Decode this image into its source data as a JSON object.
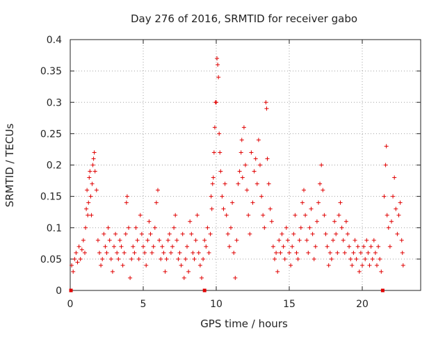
{
  "chart_data": {
    "type": "scatter",
    "title": "Day 276 of 2016, SRMTID for receiver gabo",
    "xlabel": "GPS time / hours",
    "ylabel": "SRMTID / TECUs",
    "xlim": [
      0,
      24
    ],
    "ylim": [
      0,
      0.4
    ],
    "x_ticks": [
      0,
      5,
      10,
      15,
      20
    ],
    "x_tick_labels": [
      "0",
      "5",
      "10",
      "15",
      "20"
    ],
    "y_ticks": [
      0,
      0.05,
      0.1,
      0.15,
      0.2,
      0.25,
      0.3,
      0.35,
      0.4
    ],
    "y_tick_labels": [
      "0",
      "0.05",
      "0.1",
      "0.15",
      "0.2",
      "0.25",
      "0.3",
      "0.35",
      "0.4"
    ],
    "grid": true,
    "marker": "+",
    "color": "#e00000",
    "series": [
      {
        "name": "SRMTID",
        "points": [
          [
            0.1,
            0.04
          ],
          [
            0.2,
            0.03
          ],
          [
            0.3,
            0.05
          ],
          [
            0.4,
            0.06
          ],
          [
            0.5,
            0.045
          ],
          [
            0.6,
            0.07
          ],
          [
            0.7,
            0.05
          ],
          [
            0.8,
            0.065
          ],
          [
            0.9,
            0.08
          ],
          [
            1.0,
            0.06
          ],
          [
            1.05,
            0.1
          ],
          [
            1.1,
            0.13
          ],
          [
            1.15,
            0.16
          ],
          [
            1.2,
            0.12
          ],
          [
            1.25,
            0.14
          ],
          [
            1.3,
            0.18
          ],
          [
            1.35,
            0.19
          ],
          [
            1.4,
            0.15
          ],
          [
            1.45,
            0.12
          ],
          [
            1.5,
            0.17
          ],
          [
            1.55,
            0.2
          ],
          [
            1.6,
            0.21
          ],
          [
            1.65,
            0.22
          ],
          [
            1.7,
            0.19
          ],
          [
            1.8,
            0.16
          ],
          [
            1.9,
            0.08
          ],
          [
            2.0,
            0.06
          ],
          [
            2.1,
            0.04
          ],
          [
            2.2,
            0.05
          ],
          [
            2.3,
            0.09
          ],
          [
            2.4,
            0.07
          ],
          [
            2.5,
            0.06
          ],
          [
            2.6,
            0.1
          ],
          [
            2.7,
            0.08
          ],
          [
            2.8,
            0.05
          ],
          [
            2.9,
            0.03
          ],
          [
            3.0,
            0.07
          ],
          [
            3.1,
            0.09
          ],
          [
            3.2,
            0.06
          ],
          [
            3.3,
            0.05
          ],
          [
            3.4,
            0.08
          ],
          [
            3.5,
            0.07
          ],
          [
            3.6,
            0.04
          ],
          [
            3.7,
            0.06
          ],
          [
            3.8,
            0.09
          ],
          [
            3.85,
            0.14
          ],
          [
            3.9,
            0.15
          ],
          [
            4.0,
            0.1
          ],
          [
            4.1,
            0.02
          ],
          [
            4.2,
            0.05
          ],
          [
            4.3,
            0.07
          ],
          [
            4.4,
            0.06
          ],
          [
            4.5,
            0.1
          ],
          [
            4.6,
            0.08
          ],
          [
            4.7,
            0.05
          ],
          [
            4.8,
            0.12
          ],
          [
            4.9,
            0.09
          ],
          [
            5.0,
            0.07
          ],
          [
            5.1,
            0.06
          ],
          [
            5.2,
            0.04
          ],
          [
            5.3,
            0.08
          ],
          [
            5.4,
            0.11
          ],
          [
            5.5,
            0.09
          ],
          [
            5.6,
            0.06
          ],
          [
            5.7,
            0.07
          ],
          [
            5.8,
            0.1
          ],
          [
            5.9,
            0.14
          ],
          [
            6.0,
            0.16
          ],
          [
            6.1,
            0.08
          ],
          [
            6.2,
            0.05
          ],
          [
            6.3,
            0.07
          ],
          [
            6.4,
            0.06
          ],
          [
            6.5,
            0.03
          ],
          [
            6.6,
            0.05
          ],
          [
            6.7,
            0.08
          ],
          [
            6.8,
            0.09
          ],
          [
            6.9,
            0.06
          ],
          [
            7.0,
            0.07
          ],
          [
            7.1,
            0.1
          ],
          [
            7.2,
            0.12
          ],
          [
            7.3,
            0.08
          ],
          [
            7.4,
            0.05
          ],
          [
            7.5,
            0.06
          ],
          [
            7.6,
            0.04
          ],
          [
            7.7,
            0.09
          ],
          [
            7.8,
            0.02
          ],
          [
            7.9,
            0.05
          ],
          [
            8.0,
            0.07
          ],
          [
            8.1,
            0.03
          ],
          [
            8.2,
            0.11
          ],
          [
            8.3,
            0.09
          ],
          [
            8.4,
            0.06
          ],
          [
            8.5,
            0.05
          ],
          [
            8.6,
            0.08
          ],
          [
            8.7,
            0.12
          ],
          [
            8.8,
            0.06
          ],
          [
            8.9,
            0.04
          ],
          [
            9.0,
            0.02
          ],
          [
            9.1,
            0.05
          ],
          [
            9.2,
            0.08
          ],
          [
            9.3,
            0.07
          ],
          [
            9.4,
            0.1
          ],
          [
            9.5,
            0.06
          ],
          [
            9.6,
            0.09
          ],
          [
            9.65,
            0.15
          ],
          [
            9.7,
            0.13
          ],
          [
            9.75,
            0.17
          ],
          [
            9.8,
            0.18
          ],
          [
            9.85,
            0.22
          ],
          [
            9.9,
            0.26
          ],
          [
            9.95,
            0.3
          ],
          [
            10.0,
            0.3
          ],
          [
            10.05,
            0.37
          ],
          [
            10.1,
            0.36
          ],
          [
            10.15,
            0.34
          ],
          [
            10.2,
            0.25
          ],
          [
            10.25,
            0.22
          ],
          [
            10.3,
            0.19
          ],
          [
            10.4,
            0.15
          ],
          [
            10.5,
            0.13
          ],
          [
            10.6,
            0.17
          ],
          [
            10.7,
            0.12
          ],
          [
            10.8,
            0.09
          ],
          [
            10.9,
            0.07
          ],
          [
            11.0,
            0.1
          ],
          [
            11.1,
            0.14
          ],
          [
            11.2,
            0.06
          ],
          [
            11.3,
            0.02
          ],
          [
            11.4,
            0.08
          ],
          [
            11.5,
            0.17
          ],
          [
            11.6,
            0.19
          ],
          [
            11.7,
            0.22
          ],
          [
            11.75,
            0.24
          ],
          [
            11.8,
            0.18
          ],
          [
            11.9,
            0.26
          ],
          [
            12.0,
            0.2
          ],
          [
            12.1,
            0.16
          ],
          [
            12.2,
            0.12
          ],
          [
            12.3,
            0.09
          ],
          [
            12.4,
            0.22
          ],
          [
            12.5,
            0.14
          ],
          [
            12.6,
            0.19
          ],
          [
            12.7,
            0.21
          ],
          [
            12.8,
            0.17
          ],
          [
            12.9,
            0.24
          ],
          [
            13.0,
            0.2
          ],
          [
            13.1,
            0.15
          ],
          [
            13.2,
            0.12
          ],
          [
            13.3,
            0.1
          ],
          [
            13.4,
            0.3
          ],
          [
            13.45,
            0.29
          ],
          [
            13.5,
            0.21
          ],
          [
            13.6,
            0.17
          ],
          [
            13.7,
            0.13
          ],
          [
            13.8,
            0.11
          ],
          [
            13.9,
            0.07
          ],
          [
            14.0,
            0.05
          ],
          [
            14.1,
            0.06
          ],
          [
            14.2,
            0.03
          ],
          [
            14.3,
            0.08
          ],
          [
            14.4,
            0.06
          ],
          [
            14.5,
            0.09
          ],
          [
            14.6,
            0.07
          ],
          [
            14.7,
            0.05
          ],
          [
            14.8,
            0.1
          ],
          [
            14.9,
            0.08
          ],
          [
            15.0,
            0.06
          ],
          [
            15.1,
            0.04
          ],
          [
            15.2,
            0.07
          ],
          [
            15.3,
            0.09
          ],
          [
            15.4,
            0.12
          ],
          [
            15.5,
            0.06
          ],
          [
            15.6,
            0.05
          ],
          [
            15.7,
            0.08
          ],
          [
            15.8,
            0.1
          ],
          [
            15.9,
            0.14
          ],
          [
            16.0,
            0.16
          ],
          [
            16.1,
            0.12
          ],
          [
            16.2,
            0.08
          ],
          [
            16.3,
            0.06
          ],
          [
            16.4,
            0.1
          ],
          [
            16.5,
            0.13
          ],
          [
            16.6,
            0.09
          ],
          [
            16.7,
            0.05
          ],
          [
            16.8,
            0.07
          ],
          [
            16.9,
            0.11
          ],
          [
            17.0,
            0.14
          ],
          [
            17.1,
            0.17
          ],
          [
            17.2,
            0.2
          ],
          [
            17.3,
            0.16
          ],
          [
            17.4,
            0.12
          ],
          [
            17.5,
            0.09
          ],
          [
            17.6,
            0.07
          ],
          [
            17.7,
            0.04
          ],
          [
            17.8,
            0.06
          ],
          [
            17.9,
            0.05
          ],
          [
            18.0,
            0.08
          ],
          [
            18.1,
            0.11
          ],
          [
            18.2,
            0.09
          ],
          [
            18.3,
            0.06
          ],
          [
            18.4,
            0.12
          ],
          [
            18.5,
            0.14
          ],
          [
            18.6,
            0.1
          ],
          [
            18.7,
            0.08
          ],
          [
            18.8,
            0.06
          ],
          [
            18.9,
            0.11
          ],
          [
            19.0,
            0.09
          ],
          [
            19.1,
            0.07
          ],
          [
            19.2,
            0.05
          ],
          [
            19.3,
            0.04
          ],
          [
            19.4,
            0.06
          ],
          [
            19.5,
            0.08
          ],
          [
            19.6,
            0.05
          ],
          [
            19.7,
            0.07
          ],
          [
            19.8,
            0.03
          ],
          [
            19.9,
            0.06
          ],
          [
            20.0,
            0.04
          ],
          [
            20.1,
            0.07
          ],
          [
            20.2,
            0.05
          ],
          [
            20.3,
            0.08
          ],
          [
            20.4,
            0.06
          ],
          [
            20.5,
            0.04
          ],
          [
            20.6,
            0.07
          ],
          [
            20.7,
            0.05
          ],
          [
            20.8,
            0.08
          ],
          [
            20.9,
            0.06
          ],
          [
            21.0,
            0.04
          ],
          [
            21.1,
            0.07
          ],
          [
            21.2,
            0.05
          ],
          [
            21.3,
            0.03
          ],
          [
            21.5,
            0.15
          ],
          [
            21.6,
            0.2
          ],
          [
            21.65,
            0.23
          ],
          [
            21.7,
            0.12
          ],
          [
            21.8,
            0.1
          ],
          [
            21.9,
            0.07
          ],
          [
            22.0,
            0.11
          ],
          [
            22.1,
            0.15
          ],
          [
            22.2,
            0.18
          ],
          [
            22.3,
            0.13
          ],
          [
            22.4,
            0.09
          ],
          [
            22.5,
            0.12
          ],
          [
            22.6,
            0.14
          ],
          [
            22.7,
            0.08
          ],
          [
            22.75,
            0.06
          ],
          [
            22.8,
            0.04
          ]
        ]
      }
    ],
    "gap_markers_x": [
      0.05,
      9.2,
      21.4
    ]
  }
}
